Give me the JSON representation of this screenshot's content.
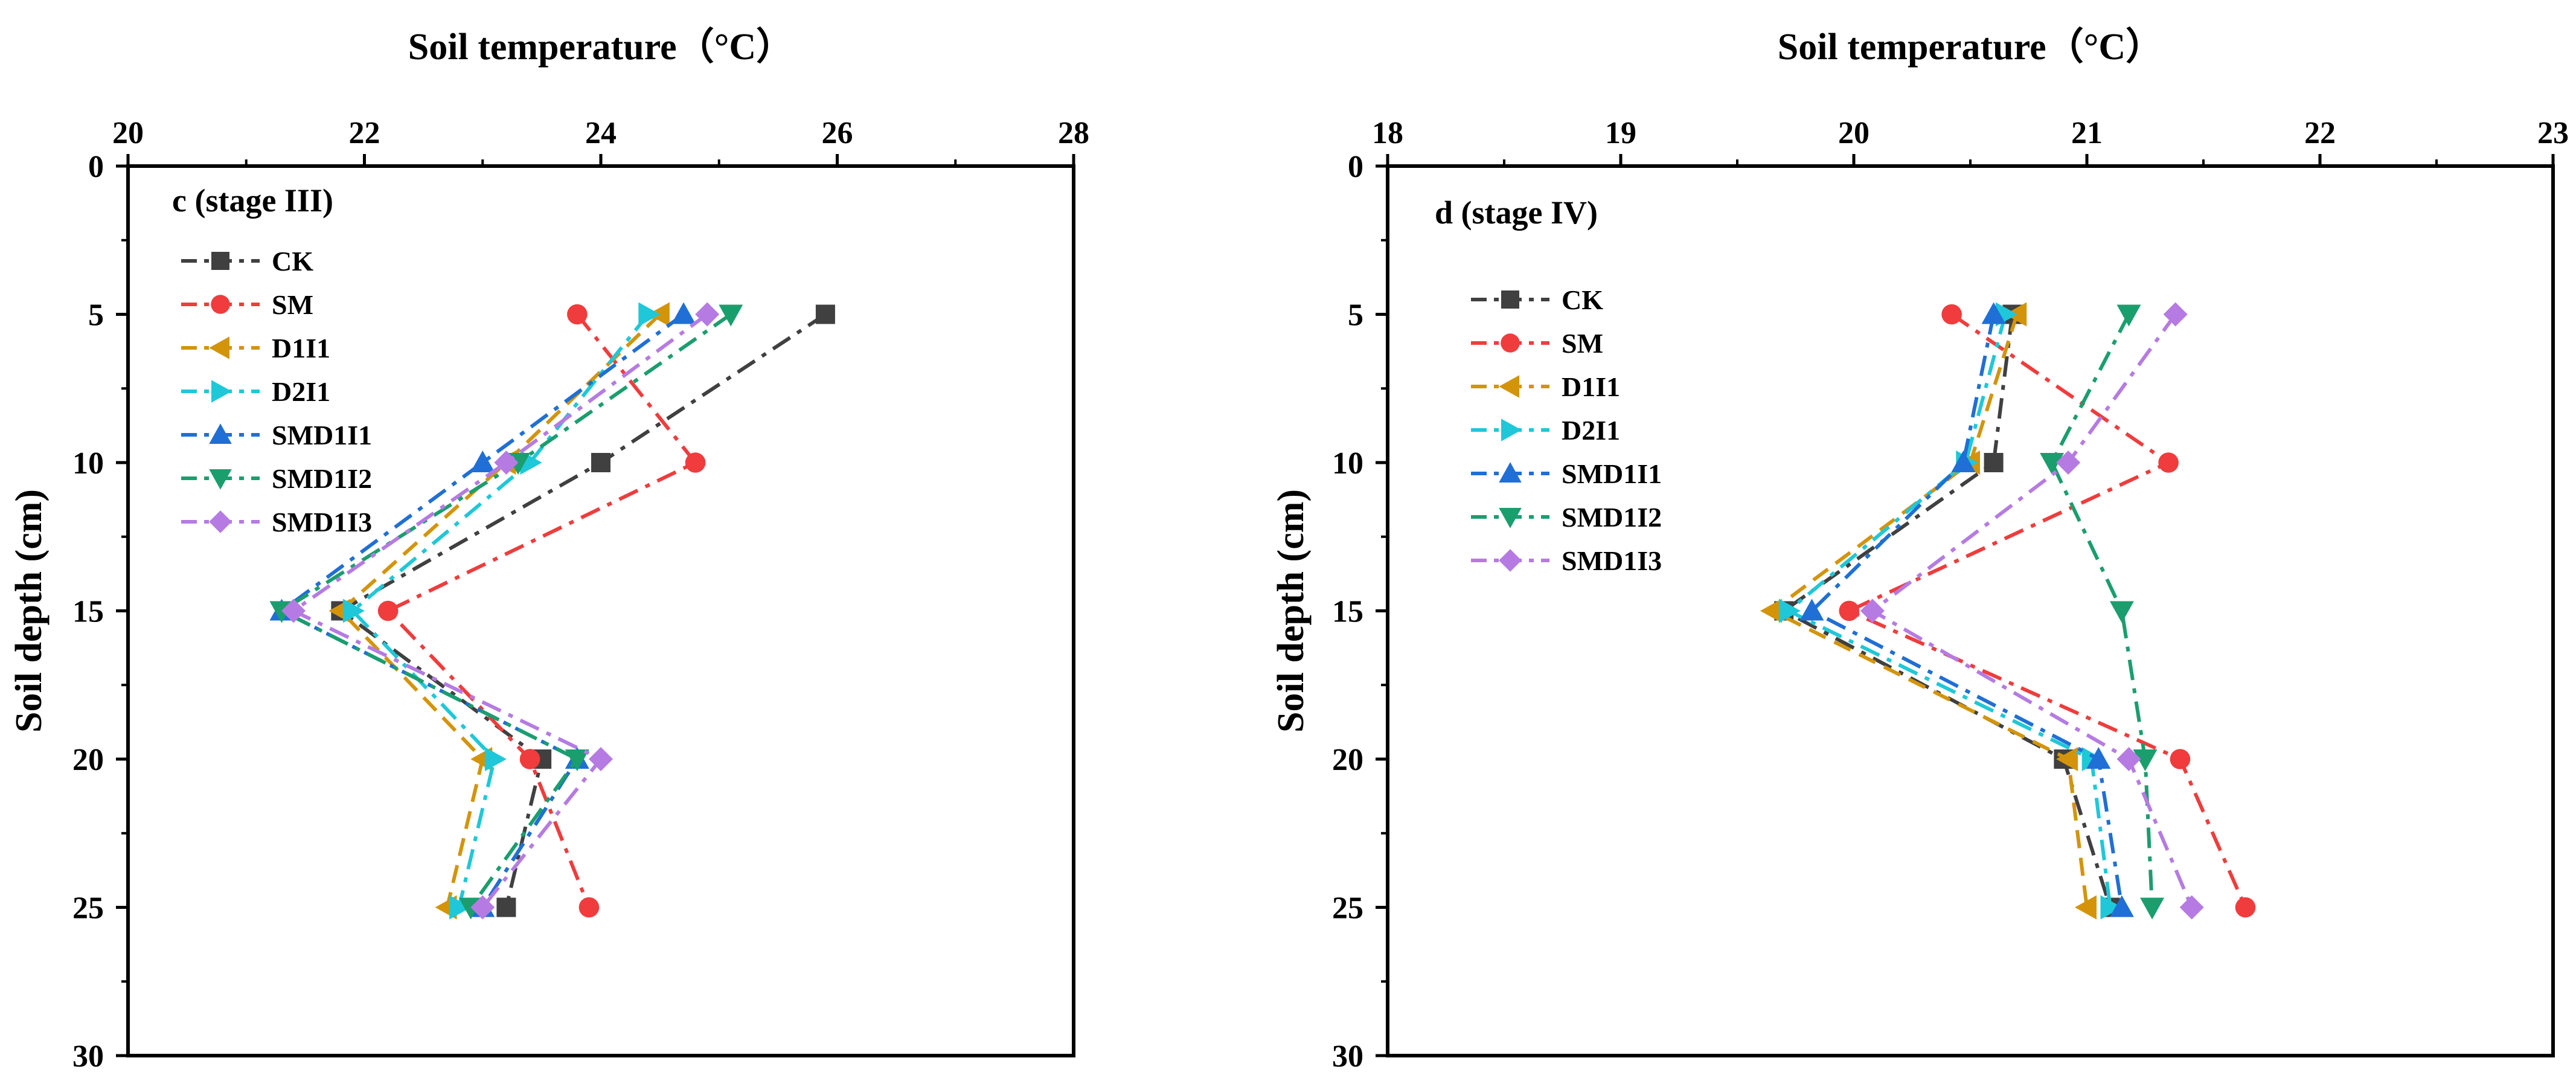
{
  "chart_data": [
    {
      "type": "line",
      "panel_label": "c (stage III)",
      "xlabel": "Soil temperature（°C）",
      "ylabel": "Soil depth (cm)",
      "xlim": [
        20,
        28
      ],
      "ylim": [
        0,
        30
      ],
      "y_reversed": true,
      "x_axis_position": "top",
      "x_ticks": [
        "20",
        "22",
        "24",
        "26",
        "28"
      ],
      "y_ticks": [
        "0",
        "5",
        "10",
        "15",
        "20",
        "25",
        "30"
      ],
      "legend_position": "top-left",
      "y_depths": [
        5,
        10,
        15,
        20,
        25
      ],
      "series": [
        {
          "name": "CK",
          "color": "#404040",
          "marker": "square",
          "dash": "dashdot",
          "x": [
            25.9,
            24.0,
            21.8,
            23.5,
            23.2
          ]
        },
        {
          "name": "SM",
          "color": "#f03c3c",
          "marker": "circle",
          "dash": "dashdot",
          "x": [
            23.8,
            24.8,
            22.2,
            23.4,
            23.9
          ]
        },
        {
          "name": "D1I1",
          "color": "#d4940a",
          "marker": "triangle-left",
          "dash": "dash",
          "x": [
            24.5,
            23.2,
            21.8,
            23.0,
            22.7
          ]
        },
        {
          "name": "D2I1",
          "color": "#1ec8d8",
          "marker": "triangle-right",
          "dash": "dashdot",
          "x": [
            24.4,
            23.4,
            21.9,
            23.1,
            22.8
          ]
        },
        {
          "name": "SMD1I1",
          "color": "#1f6fd6",
          "marker": "triangle-up",
          "dash": "dashdot",
          "x": [
            24.7,
            23.0,
            21.3,
            23.8,
            23.0
          ]
        },
        {
          "name": "SMD1I2",
          "color": "#1a9e6e",
          "marker": "triangle-down",
          "dash": "dashdot",
          "x": [
            25.1,
            23.3,
            21.3,
            23.8,
            22.9
          ]
        },
        {
          "name": "SMD1I3",
          "color": "#b57be3",
          "marker": "diamond",
          "dash": "dashdot",
          "x": [
            24.9,
            23.2,
            21.4,
            24.0,
            23.0
          ]
        }
      ]
    },
    {
      "type": "line",
      "panel_label": "d (stage IV)",
      "xlabel": "Soil temperature（°C）",
      "ylabel": "Soil depth (cm)",
      "xlim": [
        18,
        23
      ],
      "ylim": [
        0,
        30
      ],
      "y_reversed": true,
      "x_axis_position": "top",
      "x_ticks": [
        "18",
        "19",
        "20",
        "21",
        "22",
        "23"
      ],
      "y_ticks": [
        "0",
        "5",
        "10",
        "15",
        "20",
        "25",
        "30"
      ],
      "legend_position": "top-left",
      "y_depths": [
        5,
        10,
        15,
        20,
        25
      ],
      "series": [
        {
          "name": "CK",
          "color": "#404040",
          "marker": "square",
          "dash": "dashdot",
          "x": [
            20.68,
            20.6,
            19.7,
            20.9,
            21.1
          ]
        },
        {
          "name": "SM",
          "color": "#f03c3c",
          "marker": "circle",
          "dash": "dashdot",
          "x": [
            20.42,
            21.35,
            19.98,
            21.4,
            21.68
          ]
        },
        {
          "name": "D1I1",
          "color": "#d4940a",
          "marker": "triangle-left",
          "dash": "dash",
          "x": [
            20.7,
            20.5,
            19.65,
            20.92,
            21.0
          ]
        },
        {
          "name": "D2I1",
          "color": "#1ec8d8",
          "marker": "triangle-right",
          "dash": "dashdot",
          "x": [
            20.65,
            20.48,
            19.72,
            21.02,
            21.1
          ]
        },
        {
          "name": "SMD1I1",
          "color": "#1f6fd6",
          "marker": "triangle-up",
          "dash": "dashdot",
          "x": [
            20.6,
            20.47,
            19.82,
            21.05,
            21.15
          ]
        },
        {
          "name": "SMD1I2",
          "color": "#1a9e6e",
          "marker": "triangle-down",
          "dash": "dashdot",
          "x": [
            21.18,
            20.85,
            21.15,
            21.25,
            21.28
          ]
        },
        {
          "name": "SMD1I3",
          "color": "#b57be3",
          "marker": "diamond",
          "dash": "dashdot",
          "x": [
            21.38,
            20.92,
            20.08,
            21.18,
            21.45
          ]
        }
      ]
    }
  ]
}
